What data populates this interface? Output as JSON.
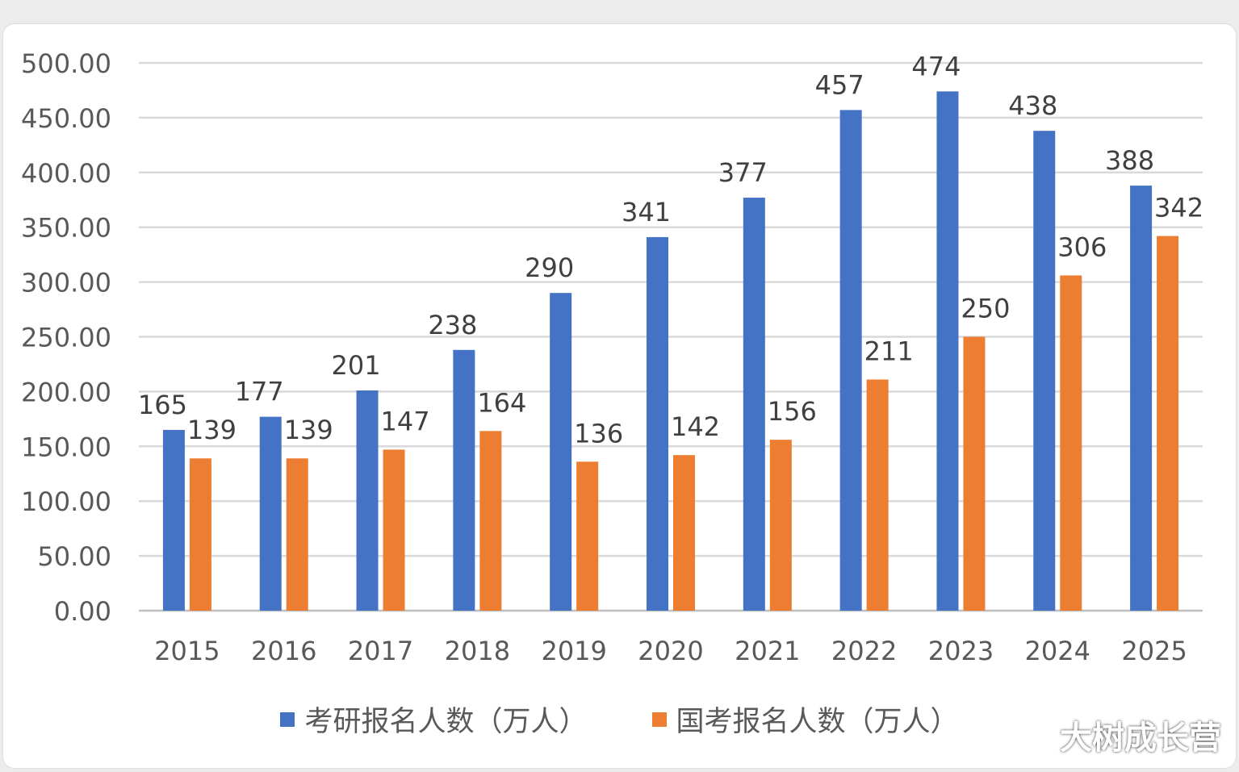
{
  "chart_data": {
    "type": "bar",
    "categories": [
      "2015",
      "2016",
      "2017",
      "2018",
      "2019",
      "2020",
      "2021",
      "2022",
      "2023",
      "2024",
      "2025"
    ],
    "series": [
      {
        "name": "考研报名人数（万人）",
        "color": "#4472c4",
        "values": [
          165,
          177,
          201,
          238,
          290,
          341,
          377,
          457,
          474,
          438,
          388
        ]
      },
      {
        "name": "国考报名人数（万人）",
        "color": "#ed7d31",
        "values": [
          139,
          139,
          147,
          164,
          136,
          142,
          156,
          211,
          250,
          306,
          342
        ]
      }
    ],
    "ylim": [
      0,
      500
    ],
    "yticks": [
      "0.00",
      "50.00",
      "100.00",
      "150.00",
      "200.00",
      "250.00",
      "300.00",
      "350.00",
      "400.00",
      "450.00",
      "500.00"
    ],
    "grid": true,
    "legend_position": "bottom"
  },
  "watermark": "大树成长营"
}
